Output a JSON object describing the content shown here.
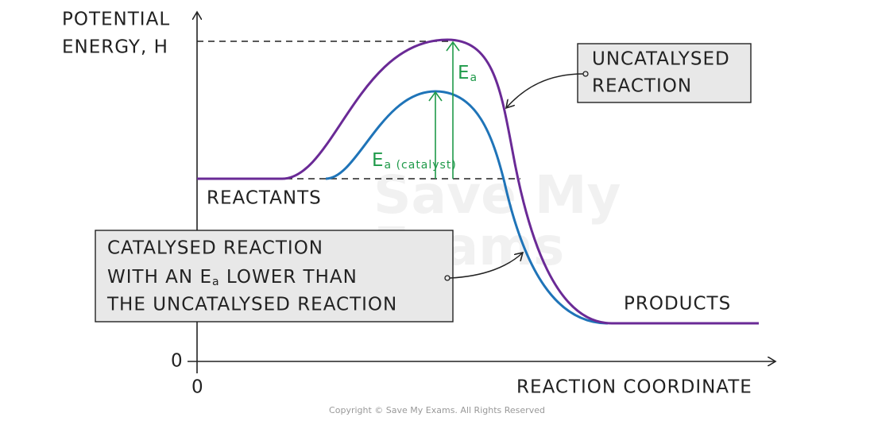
{
  "axes": {
    "y_label": [
      "POTENTIAL",
      "ENERGY, H"
    ],
    "x_label": "REACTION COORDINATE",
    "y_zero": "0",
    "x_zero": "0"
  },
  "labels": {
    "reactants": "REACTANTS",
    "products": "PRODUCTS",
    "ea": {
      "main": "E",
      "sub": "a"
    },
    "ea_catalyst": {
      "main": "E",
      "sub": "a (catalyst)"
    }
  },
  "uncatalysed_box": [
    "UNCATALYSED",
    "REACTION"
  ],
  "catalysed_box": {
    "line1": "CATALYSED REACTION",
    "line2_start": "WITH AN ",
    "line2_e": "E",
    "line2_sub": "a",
    "line2_end": " LOWER THAN",
    "line3": "THE UNCATALYSED REACTION"
  },
  "watermark": [
    "Save My",
    "Exams"
  ],
  "copyright": "Copyright © Save My Exams. All Rights Reserved"
}
